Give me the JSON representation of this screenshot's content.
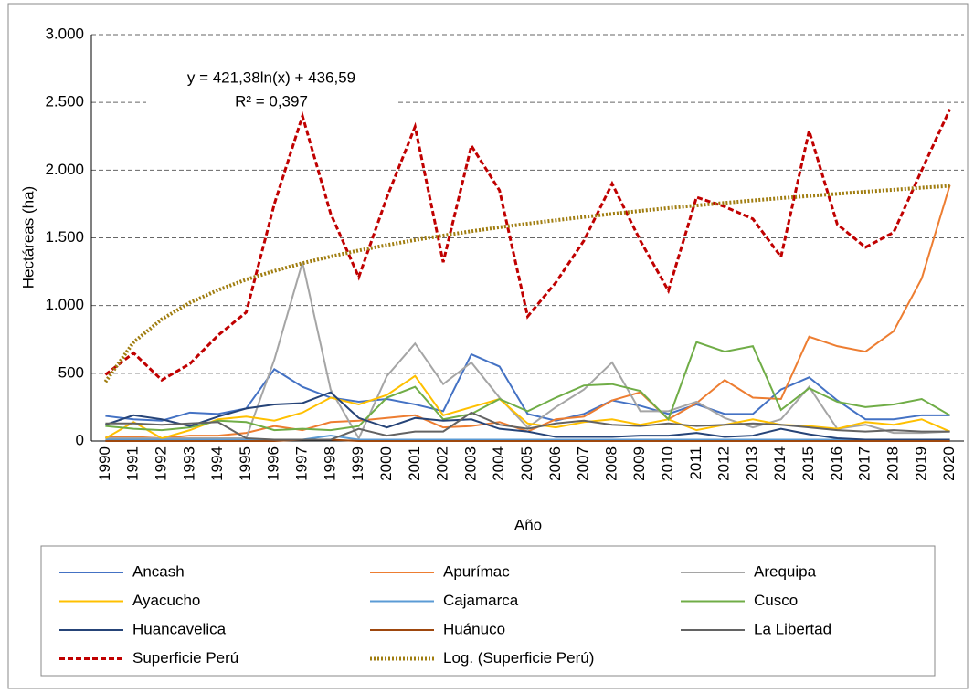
{
  "chart_data": {
    "type": "line",
    "y_label": "Hectáreas (ha)",
    "x_label": "Año",
    "annotations": [
      "y = 421,38ln(x) + 436,59",
      "R² = 0,397"
    ],
    "categories": [
      "1990",
      "1991",
      "1992",
      "1993",
      "1994",
      "1995",
      "1996",
      "1997",
      "1998",
      "1999",
      "2000",
      "2001",
      "2002",
      "2003",
      "2004",
      "2005",
      "2006",
      "2007",
      "2008",
      "2009",
      "2010",
      "2011",
      "2012",
      "2013",
      "2014",
      "2015",
      "2016",
      "2017",
      "2018",
      "2019",
      "2020"
    ],
    "ylim": [
      0,
      3000
    ],
    "yticks": [
      0,
      500,
      {
        "value": 1000,
        "label": "1.000"
      },
      {
        "value": 1500,
        "label": "1.500"
      },
      {
        "value": 2000,
        "label": "2.000"
      },
      {
        "value": 2500,
        "label": "2.500"
      },
      {
        "value": 3000,
        "label": "3.000"
      }
    ],
    "grid": true,
    "series": [
      {
        "name": "Ancash",
        "color": "#4472c4",
        "line_style": "solid",
        "values": [
          185,
          160,
          150,
          210,
          200,
          240,
          530,
          400,
          320,
          290,
          310,
          270,
          220,
          640,
          550,
          200,
          150,
          200,
          300,
          260,
          200,
          270,
          200,
          200,
          380,
          470,
          300,
          160,
          160,
          190,
          190
        ]
      },
      {
        "name": "Apurímac",
        "color": "#ed7d31",
        "line_style": "solid",
        "values": [
          30,
          30,
          20,
          40,
          40,
          60,
          110,
          80,
          140,
          150,
          170,
          190,
          100,
          110,
          140,
          70,
          160,
          180,
          300,
          360,
          160,
          280,
          450,
          320,
          310,
          770,
          700,
          660,
          810,
          1200,
          1890
        ]
      },
      {
        "name": "Arequipa",
        "color": "#a5a5a5",
        "line_style": "solid",
        "values": [
          20,
          20,
          20,
          20,
          20,
          20,
          600,
          1320,
          380,
          20,
          480,
          720,
          420,
          580,
          320,
          100,
          250,
          380,
          580,
          220,
          220,
          290,
          170,
          100,
          160,
          400,
          90,
          120,
          60,
          60,
          70
        ]
      },
      {
        "name": "Ayacucho",
        "color": "#ffc000",
        "line_style": "solid",
        "values": [
          20,
          140,
          20,
          80,
          160,
          180,
          150,
          210,
          320,
          270,
          340,
          480,
          190,
          250,
          310,
          130,
          100,
          140,
          160,
          120,
          160,
          80,
          120,
          160,
          120,
          110,
          90,
          140,
          120,
          160,
          70
        ]
      },
      {
        "name": "Cajamarca",
        "color": "#5b9bd5",
        "line_style": "solid",
        "values": [
          10,
          10,
          10,
          10,
          10,
          10,
          10,
          10,
          40,
          10,
          10,
          10,
          10,
          10,
          10,
          10,
          10,
          10,
          10,
          10,
          10,
          10,
          10,
          10,
          10,
          10,
          10,
          10,
          10,
          10,
          10
        ]
      },
      {
        "name": "Cusco",
        "color": "#70ad47",
        "line_style": "solid",
        "values": [
          110,
          90,
          80,
          100,
          150,
          140,
          80,
          90,
          80,
          110,
          320,
          400,
          160,
          200,
          310,
          220,
          320,
          410,
          420,
          370,
          160,
          730,
          660,
          700,
          230,
          390,
          290,
          250,
          270,
          310,
          190
        ]
      },
      {
        "name": "Huancavelica",
        "color": "#264478",
        "line_style": "solid",
        "values": [
          120,
          190,
          160,
          110,
          180,
          240,
          270,
          280,
          360,
          170,
          100,
          170,
          150,
          160,
          90,
          70,
          30,
          30,
          30,
          40,
          40,
          60,
          30,
          40,
          90,
          50,
          20,
          10,
          10,
          10,
          10
        ]
      },
      {
        "name": "Huánuco",
        "color": "#9e480e",
        "line_style": "solid",
        "values": [
          0,
          0,
          0,
          0,
          0,
          0,
          0,
          10,
          10,
          0,
          0,
          0,
          0,
          0,
          0,
          0,
          0,
          0,
          0,
          0,
          0,
          0,
          0,
          0,
          0,
          0,
          0,
          0,
          0,
          0,
          0
        ]
      },
      {
        "name": "La Libertad",
        "color": "#636363",
        "line_style": "solid",
        "values": [
          130,
          130,
          120,
          130,
          140,
          20,
          10,
          10,
          10,
          90,
          40,
          70,
          70,
          210,
          120,
          90,
          130,
          150,
          120,
          110,
          130,
          110,
          120,
          130,
          120,
          100,
          80,
          70,
          80,
          70,
          70
        ]
      },
      {
        "name": "Superficie Perú",
        "color": "#c00000",
        "line_style": "dashed",
        "values": [
          490,
          650,
          450,
          570,
          780,
          950,
          1750,
          2400,
          1680,
          1210,
          1800,
          2320,
          1320,
          2180,
          1850,
          920,
          1170,
          1480,
          1900,
          1480,
          1110,
          1800,
          1730,
          1640,
          1360,
          2290,
          1600,
          1430,
          1540,
          2000,
          2450
        ]
      },
      {
        "name": "Log. (Superficie Perú)",
        "color": "#a07d10",
        "line_style": "dotted",
        "values": [
          437,
          729,
          899,
          1021,
          1115,
          1192,
          1256,
          1313,
          1362,
          1407,
          1447,
          1484,
          1517,
          1549,
          1578,
          1605,
          1630,
          1654,
          1677,
          1699,
          1720,
          1739,
          1758,
          1776,
          1793,
          1809,
          1825,
          1841,
          1855,
          1870,
          1884
        ]
      }
    ]
  }
}
